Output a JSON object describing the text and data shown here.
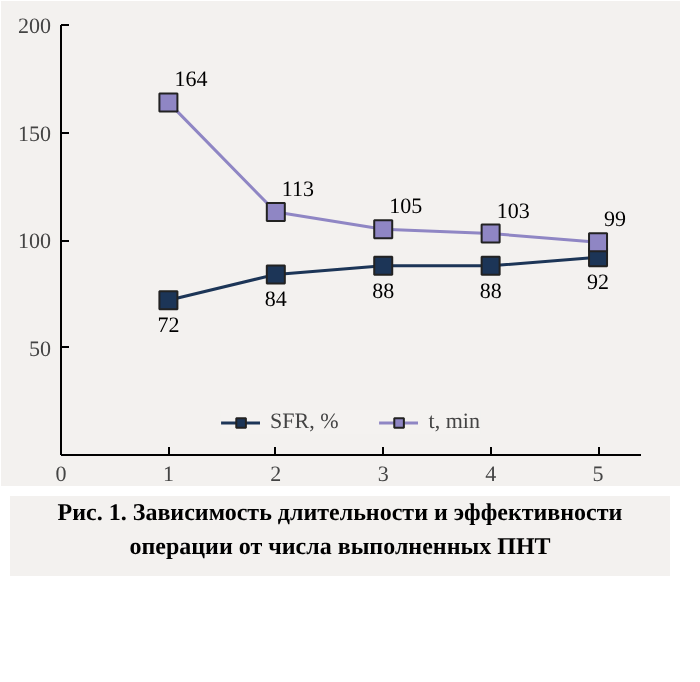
{
  "chart_data": {
    "type": "line",
    "x": [
      1,
      2,
      3,
      4,
      5
    ],
    "series": [
      {
        "name": "SFR, %",
        "color": "#1c3557",
        "values": [
          72,
          84,
          88,
          88,
          92
        ]
      },
      {
        "name": "t, min",
        "color": "#8f86c4",
        "values": [
          164,
          113,
          105,
          103,
          99
        ]
      }
    ],
    "xlim": [
      0,
      5.4
    ],
    "xticks": [
      0,
      1,
      2,
      3,
      4,
      5
    ],
    "ylim": [
      0,
      200
    ],
    "yticks": [
      50,
      100,
      150,
      200
    ],
    "marker": "square",
    "line_style": "solid",
    "grid": false,
    "legend": "bottom",
    "data_labels": true,
    "annotations": [
      "Рис. 1. Зависимость длительности и эффективности операции от числа выполненных ПНТ"
    ]
  }
}
